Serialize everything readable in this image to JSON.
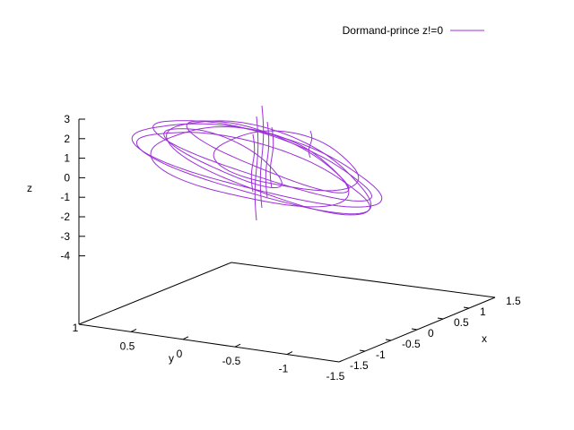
{
  "chart_data": {
    "type": "line",
    "dimensionality": "3d",
    "title": "",
    "legend": {
      "placement": "top-right",
      "entries": [
        {
          "label": "Dormand-prince z!=0",
          "color": "#9b30d9"
        }
      ]
    },
    "axes": {
      "x": {
        "label": "x",
        "range": [
          -1.5,
          1.5
        ],
        "ticks": [
          "-1.5",
          "-1",
          "-0.5",
          "0",
          "0.5",
          "1",
          "1.5"
        ]
      },
      "y": {
        "label": "y",
        "range": [
          -1.5,
          1
        ],
        "ticks": [
          "1",
          "0.5",
          "0",
          "-0.5",
          "-1",
          "-1.5"
        ]
      },
      "z": {
        "label": "z",
        "range": [
          -4,
          3
        ],
        "ticks": [
          "3",
          "2",
          "1",
          "0",
          "-1",
          "-2",
          "-3",
          "-4"
        ]
      }
    },
    "grid": false,
    "series": [
      {
        "name": "Dormand-prince z!=0",
        "color": "#9b30d9",
        "description_samples": "orbit trajectory"
      }
    ]
  }
}
